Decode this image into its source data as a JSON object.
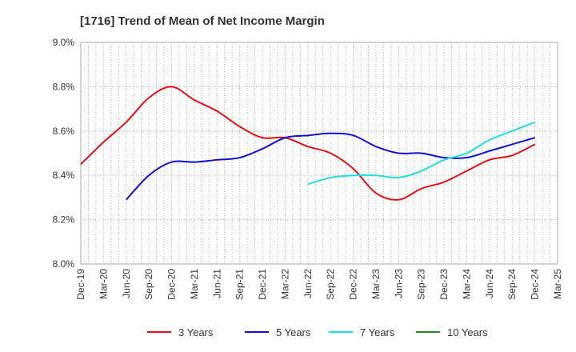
{
  "chart_data": {
    "type": "line",
    "title": "[1716]  Trend of Mean of Net Income Margin",
    "xlabel": "",
    "ylabel": "",
    "ylim": [
      8.0,
      9.0
    ],
    "y_ticks": [
      "8.0%",
      "8.2%",
      "8.4%",
      "8.6%",
      "8.8%",
      "9.0%"
    ],
    "x_ticks": [
      "Dec-19",
      "Mar-20",
      "Jun-20",
      "Sep-20",
      "Dec-20",
      "Mar-21",
      "Jun-21",
      "Sep-21",
      "Dec-21",
      "Mar-22",
      "Jun-22",
      "Sep-22",
      "Dec-22",
      "Mar-23",
      "Jun-23",
      "Sep-23",
      "Dec-23",
      "Mar-24",
      "Jun-24",
      "Sep-24",
      "Dec-24",
      "Mar-25"
    ],
    "grid": true,
    "legend_position": "bottom",
    "series": [
      {
        "name": "3 Years",
        "color": "#dd1111",
        "points": [
          [
            "Dec-19",
            8.45
          ],
          [
            "Mar-20",
            8.55
          ],
          [
            "Jun-20",
            8.64
          ],
          [
            "Sep-20",
            8.75
          ],
          [
            "Dec-20",
            8.8
          ],
          [
            "Mar-21",
            8.74
          ],
          [
            "Jun-21",
            8.69
          ],
          [
            "Sep-21",
            8.62
          ],
          [
            "Dec-21",
            8.57
          ],
          [
            "Mar-22",
            8.57
          ],
          [
            "Jun-22",
            8.53
          ],
          [
            "Sep-22",
            8.5
          ],
          [
            "Dec-22",
            8.43
          ],
          [
            "Mar-23",
            8.32
          ],
          [
            "Jun-23",
            8.29
          ],
          [
            "Sep-23",
            8.34
          ],
          [
            "Dec-23",
            8.37
          ],
          [
            "Mar-24",
            8.42
          ],
          [
            "Jun-24",
            8.47
          ],
          [
            "Sep-24",
            8.49
          ],
          [
            "Dec-24",
            8.54
          ]
        ]
      },
      {
        "name": "5 Years",
        "color": "#1111cc",
        "points": [
          [
            "Jun-20",
            8.29
          ],
          [
            "Sep-20",
            8.4
          ],
          [
            "Dec-20",
            8.46
          ],
          [
            "Mar-21",
            8.46
          ],
          [
            "Jun-21",
            8.47
          ],
          [
            "Sep-21",
            8.48
          ],
          [
            "Dec-21",
            8.52
          ],
          [
            "Mar-22",
            8.57
          ],
          [
            "Jun-22",
            8.58
          ],
          [
            "Sep-22",
            8.59
          ],
          [
            "Dec-22",
            8.58
          ],
          [
            "Mar-23",
            8.53
          ],
          [
            "Jun-23",
            8.5
          ],
          [
            "Sep-23",
            8.5
          ],
          [
            "Dec-23",
            8.48
          ],
          [
            "Mar-24",
            8.48
          ],
          [
            "Jun-24",
            8.51
          ],
          [
            "Sep-24",
            8.54
          ],
          [
            "Dec-24",
            8.57
          ]
        ]
      },
      {
        "name": "7 Years",
        "color": "#22dddd",
        "points": [
          [
            "Jun-22",
            8.36
          ],
          [
            "Sep-22",
            8.39
          ],
          [
            "Dec-22",
            8.4
          ],
          [
            "Mar-23",
            8.4
          ],
          [
            "Jun-23",
            8.39
          ],
          [
            "Sep-23",
            8.42
          ],
          [
            "Dec-23",
            8.47
          ],
          [
            "Mar-24",
            8.5
          ],
          [
            "Jun-24",
            8.56
          ],
          [
            "Sep-24",
            8.6
          ],
          [
            "Dec-24",
            8.64
          ]
        ]
      },
      {
        "name": "10 Years",
        "color": "#228822",
        "points": []
      }
    ]
  }
}
